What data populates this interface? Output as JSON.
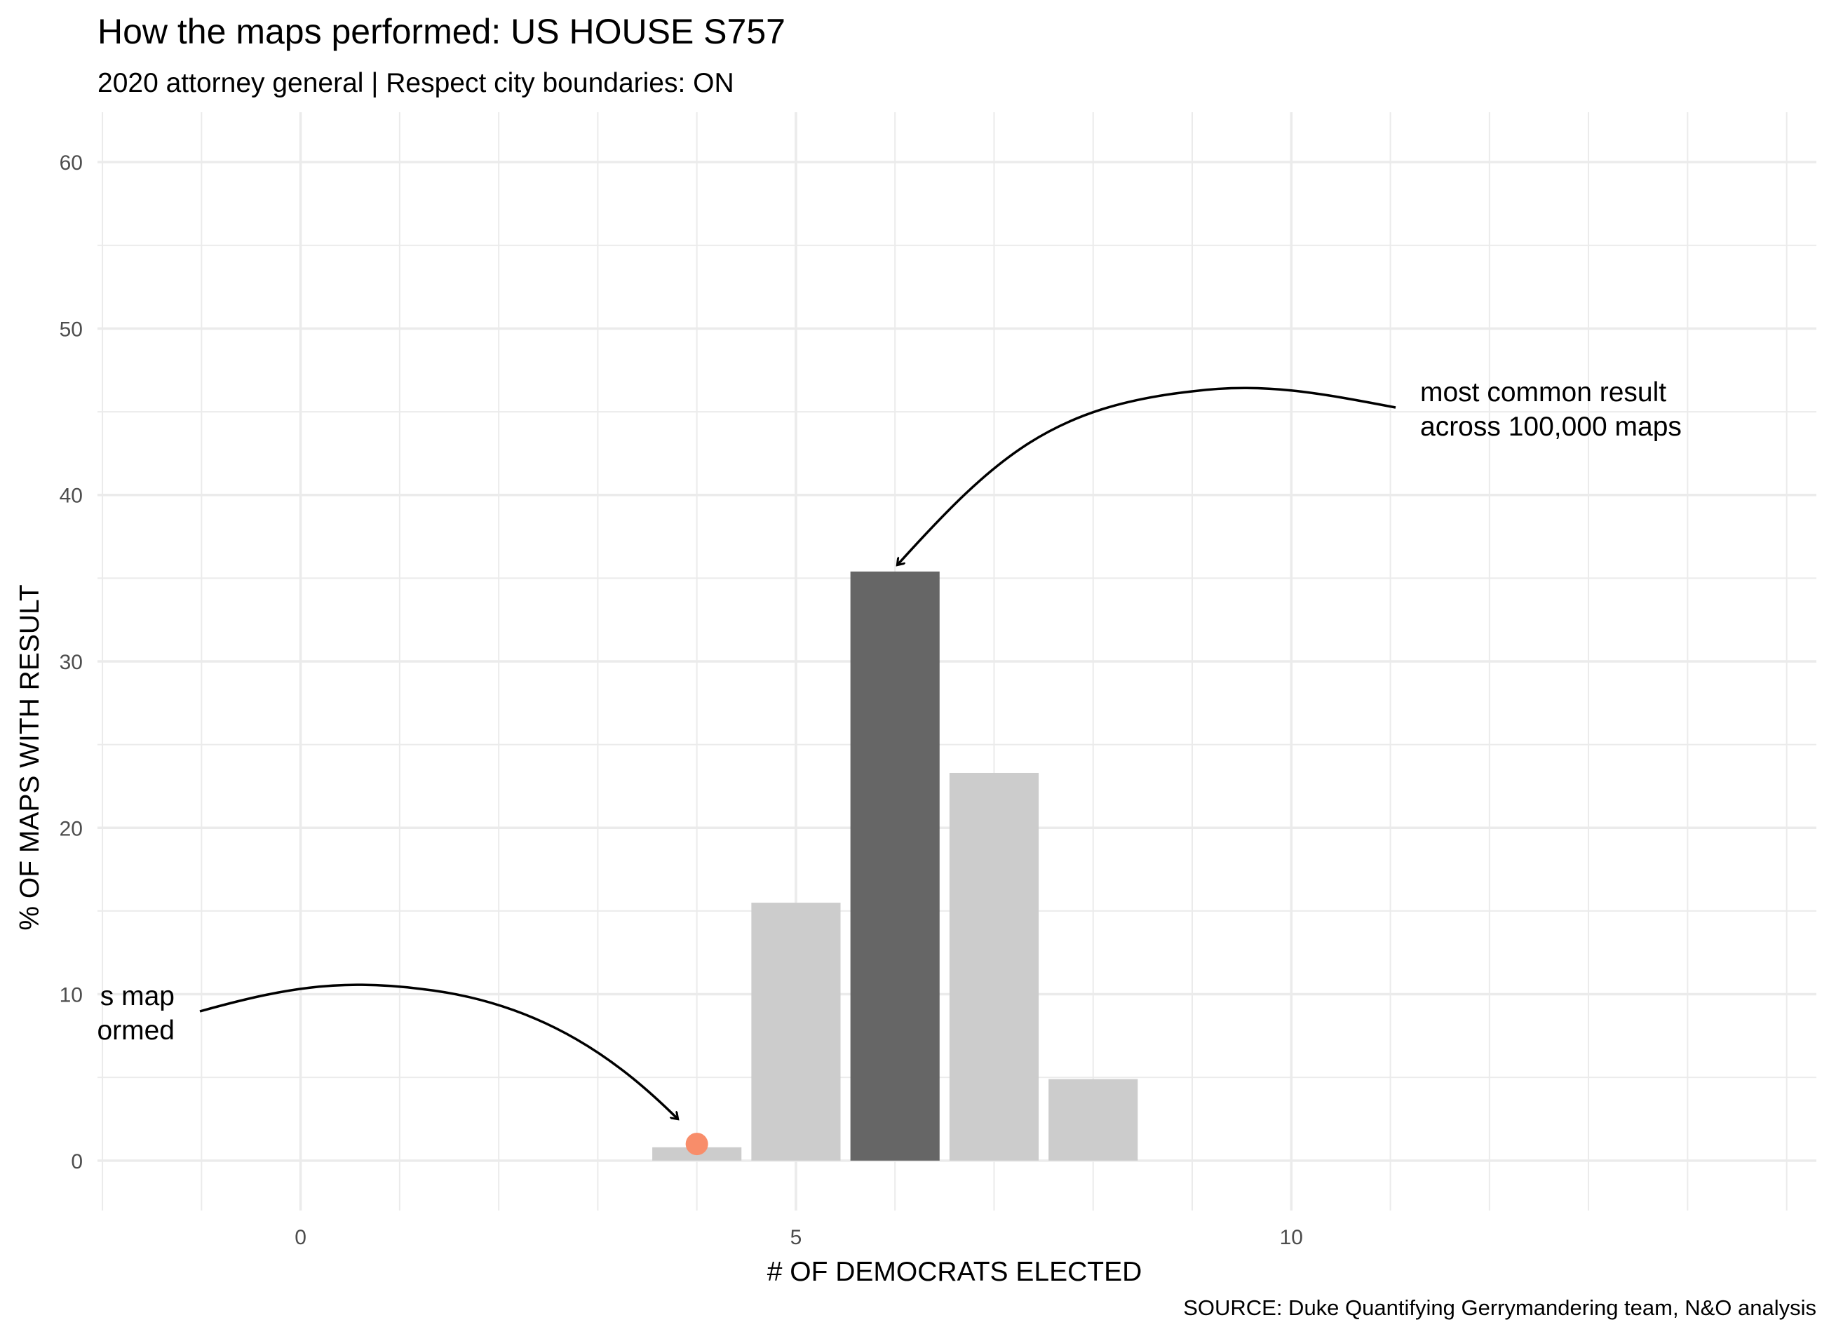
{
  "chart_data": {
    "type": "bar",
    "title": "How the maps performed: US HOUSE S757",
    "subtitle": "2020 attorney general | Respect city boundaries: ON",
    "xlabel": "# OF DEMOCRATS ELECTED",
    "ylabel": "% OF MAPS WITH RESULT",
    "caption": "SOURCE: Duke Quantifying Gerrymandering team, N&O analysis",
    "x_ticks": [
      0,
      5,
      10
    ],
    "y_ticks": [
      0,
      10,
      20,
      30,
      40,
      50,
      60
    ],
    "xlim": [
      -2.05,
      15.3
    ],
    "ylim": [
      -3,
      63
    ],
    "grid": true,
    "bars": [
      {
        "x": 4,
        "value": 0.8,
        "highlight": false
      },
      {
        "x": 5,
        "value": 15.5,
        "highlight": false
      },
      {
        "x": 6,
        "value": 35.4,
        "highlight": true
      },
      {
        "x": 7,
        "value": 23.3,
        "highlight": false
      },
      {
        "x": 8,
        "value": 4.9,
        "highlight": false
      }
    ],
    "enacted_point": {
      "x": 4,
      "y": 1.0
    },
    "annotations": [
      {
        "lines": [
          "most common result",
          "across 100,000 maps"
        ],
        "target_x": 6,
        "target_y": 35.4
      },
      {
        "lines": [
          "s map",
          "ormed"
        ],
        "target_x": 3.85,
        "target_y": 2.5
      }
    ],
    "colors": {
      "bar": "#cccccc",
      "bar_highlight": "#666666",
      "point": "#f88d6a",
      "grid": "#ebebeb"
    }
  }
}
